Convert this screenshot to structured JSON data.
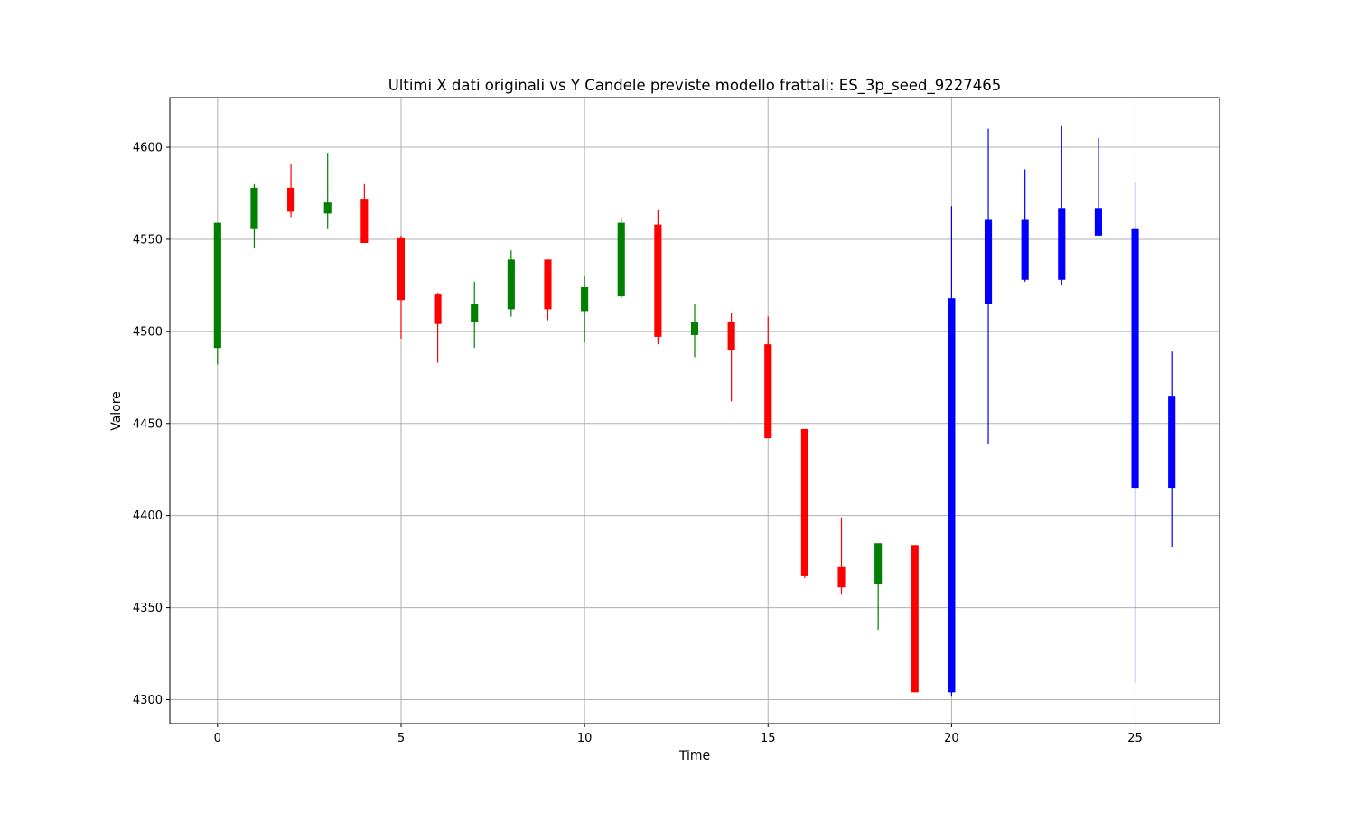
{
  "chart_data": {
    "type": "candlestick",
    "title": "Ultimi X dati originali vs Y Candele previste modello frattali: ES_3p_seed_9227465",
    "xlabel": "Time",
    "ylabel": "Valore",
    "xlim": [
      -1.3,
      27.3
    ],
    "ylim": [
      4287,
      4627
    ],
    "xticks": [
      0,
      5,
      10,
      15,
      20,
      25
    ],
    "yticks": [
      4300,
      4350,
      4400,
      4450,
      4500,
      4550,
      4600
    ],
    "grid": true,
    "colors": {
      "up": "#008000",
      "down": "#ff0000",
      "predicted": "#0000ff",
      "grid": "#b0b0b0"
    },
    "series": [
      {
        "name": "",
        "candles": [
          {
            "x": 0,
            "open": 4491,
            "high": 4559,
            "low": 4482,
            "close": 4559,
            "kind": "up"
          },
          {
            "x": 1,
            "open": 4556,
            "high": 4580,
            "low": 4545,
            "close": 4578,
            "kind": "up"
          },
          {
            "x": 2,
            "open": 4578,
            "high": 4591,
            "low": 4562,
            "close": 4565,
            "kind": "down"
          },
          {
            "x": 3,
            "open": 4564,
            "high": 4597,
            "low": 4556,
            "close": 4570,
            "kind": "up"
          },
          {
            "x": 4,
            "open": 4572,
            "high": 4580,
            "low": 4548,
            "close": 4548,
            "kind": "down"
          },
          {
            "x": 5,
            "open": 4551,
            "high": 4552,
            "low": 4496,
            "close": 4517,
            "kind": "down"
          },
          {
            "x": 6,
            "open": 4520,
            "high": 4521,
            "low": 4483,
            "close": 4504,
            "kind": "down"
          },
          {
            "x": 7,
            "open": 4505,
            "high": 4527,
            "low": 4491,
            "close": 4515,
            "kind": "up"
          },
          {
            "x": 8,
            "open": 4512,
            "high": 4544,
            "low": 4508,
            "close": 4539,
            "kind": "up"
          },
          {
            "x": 9,
            "open": 4539,
            "high": 4539,
            "low": 4506,
            "close": 4512,
            "kind": "down"
          },
          {
            "x": 10,
            "open": 4511,
            "high": 4530,
            "low": 4494,
            "close": 4524,
            "kind": "up"
          },
          {
            "x": 11,
            "open": 4519,
            "high": 4562,
            "low": 4518,
            "close": 4559,
            "kind": "up"
          },
          {
            "x": 12,
            "open": 4558,
            "high": 4566,
            "low": 4493,
            "close": 4497,
            "kind": "down"
          },
          {
            "x": 13,
            "open": 4498,
            "high": 4515,
            "low": 4486,
            "close": 4505,
            "kind": "up"
          },
          {
            "x": 14,
            "open": 4505,
            "high": 4510,
            "low": 4462,
            "close": 4490,
            "kind": "down"
          },
          {
            "x": 15,
            "open": 4493,
            "high": 4508,
            "low": 4442,
            "close": 4442,
            "kind": "down"
          },
          {
            "x": 16,
            "open": 4447,
            "high": 4447,
            "low": 4366,
            "close": 4367,
            "kind": "down"
          },
          {
            "x": 17,
            "open": 4372,
            "high": 4399,
            "low": 4357,
            "close": 4361,
            "kind": "down"
          },
          {
            "x": 18,
            "open": 4363,
            "high": 4385,
            "low": 4338,
            "close": 4385,
            "kind": "up"
          },
          {
            "x": 19,
            "open": 4384,
            "high": 4384,
            "low": 4304,
            "close": 4304,
            "kind": "down"
          },
          {
            "x": 20,
            "open": 4304,
            "high": 4568,
            "low": 4302,
            "close": 4518,
            "kind": "predicted"
          },
          {
            "x": 21,
            "open": 4515,
            "high": 4610,
            "low": 4439,
            "close": 4561,
            "kind": "predicted"
          },
          {
            "x": 22,
            "open": 4528,
            "high": 4588,
            "low": 4527,
            "close": 4561,
            "kind": "predicted"
          },
          {
            "x": 23,
            "open": 4528,
            "high": 4612,
            "low": 4525,
            "close": 4567,
            "kind": "predicted"
          },
          {
            "x": 24,
            "open": 4552,
            "high": 4605,
            "low": 4552,
            "close": 4567,
            "kind": "predicted"
          },
          {
            "x": 25,
            "open": 4556,
            "high": 4581,
            "low": 4309,
            "close": 4415,
            "kind": "predicted"
          },
          {
            "x": 26,
            "open": 4465,
            "high": 4489,
            "low": 4383,
            "close": 4415,
            "kind": "predicted"
          }
        ]
      }
    ]
  }
}
